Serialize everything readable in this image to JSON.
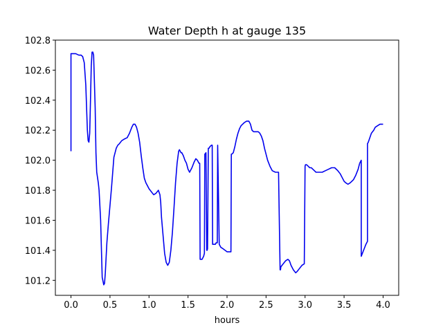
{
  "chart_data": {
    "type": "line",
    "title": "Water Depth h at gauge 135",
    "xlabel": "hours",
    "ylabel": "",
    "xlim": [
      -0.2,
      4.2
    ],
    "ylim": [
      101.1,
      102.8
    ],
    "xticks": [
      0.0,
      0.5,
      1.0,
      1.5,
      2.0,
      2.5,
      3.0,
      3.5,
      4.0
    ],
    "xtick_labels": [
      "0.0",
      "0.5",
      "1.0",
      "1.5",
      "2.0",
      "2.5",
      "3.0",
      "3.5",
      "4.0"
    ],
    "yticks": [
      101.2,
      101.4,
      101.6,
      101.8,
      102.0,
      102.2,
      102.4,
      102.6,
      102.8
    ],
    "ytick_labels": [
      "101.2",
      "101.4",
      "101.6",
      "101.8",
      "102.0",
      "102.2",
      "102.4",
      "102.6",
      "102.8"
    ],
    "grid": false,
    "series": [
      {
        "color": "#0000ee",
        "x": [
          0.0,
          0.0,
          0.03,
          0.06,
          0.1,
          0.13,
          0.15,
          0.17,
          0.19,
          0.21,
          0.22,
          0.23,
          0.24,
          0.25,
          0.26,
          0.27,
          0.28,
          0.29,
          0.31,
          0.32,
          0.33,
          0.35,
          0.36,
          0.38,
          0.4,
          0.42,
          0.43,
          0.44,
          0.45,
          0.46,
          0.48,
          0.5,
          0.52,
          0.55,
          0.58,
          0.6,
          0.62,
          0.65,
          0.68,
          0.72,
          0.75,
          0.78,
          0.8,
          0.82,
          0.84,
          0.86,
          0.88,
          0.9,
          0.92,
          0.94,
          0.96,
          0.98,
          1.0,
          1.03,
          1.06,
          1.09,
          1.12,
          1.14,
          1.15,
          1.16,
          1.18,
          1.2,
          1.22,
          1.24,
          1.26,
          1.28,
          1.3,
          1.32,
          1.34,
          1.36,
          1.38,
          1.39,
          1.41,
          1.42,
          1.44,
          1.46,
          1.48,
          1.5,
          1.52,
          1.55,
          1.58,
          1.6,
          1.62,
          1.64,
          1.65,
          1.655,
          1.66,
          1.68,
          1.7,
          1.71,
          1.715,
          1.73,
          1.74,
          1.745,
          1.75,
          1.76,
          1.77,
          1.78,
          1.8,
          1.81,
          1.815,
          1.83,
          1.85,
          1.86,
          1.87,
          1.875,
          1.88,
          1.9,
          1.92,
          1.95,
          2.0,
          2.05,
          2.055,
          2.06,
          2.08,
          2.1,
          2.12,
          2.14,
          2.16,
          2.18,
          2.2,
          2.22,
          2.25,
          2.28,
          2.3,
          2.32,
          2.34,
          2.36,
          2.4,
          2.42,
          2.44,
          2.46,
          2.48,
          2.5,
          2.52,
          2.55,
          2.58,
          2.62,
          2.66,
          2.68,
          2.685,
          2.69,
          2.72,
          2.75,
          2.78,
          2.8,
          2.82,
          2.85,
          2.88,
          2.9,
          2.93,
          2.96,
          2.99,
          3.0,
          3.005,
          3.02,
          3.04,
          3.06,
          3.08,
          3.1,
          3.12,
          3.14,
          3.18,
          3.22,
          3.26,
          3.3,
          3.34,
          3.38,
          3.42,
          3.45,
          3.48,
          3.5,
          3.52,
          3.55,
          3.58,
          3.62,
          3.65,
          3.68,
          3.7,
          3.71,
          3.72,
          3.72,
          3.75,
          3.78,
          3.8,
          3.8,
          3.81,
          3.83,
          3.85,
          3.88,
          3.9,
          3.93,
          3.96,
          3.98,
          4.0
        ],
        "values": [
          102.06,
          102.71,
          102.71,
          102.71,
          102.7,
          102.7,
          102.69,
          102.65,
          102.5,
          102.2,
          102.13,
          102.12,
          102.18,
          102.4,
          102.63,
          102.72,
          102.72,
          102.7,
          102.35,
          102.05,
          101.92,
          101.85,
          101.8,
          101.6,
          101.22,
          101.17,
          101.18,
          101.25,
          101.35,
          101.45,
          101.58,
          101.7,
          101.82,
          102.02,
          102.08,
          102.1,
          102.11,
          102.13,
          102.14,
          102.15,
          102.18,
          102.22,
          102.24,
          102.24,
          102.22,
          102.18,
          102.12,
          102.03,
          101.95,
          101.88,
          101.85,
          101.83,
          101.81,
          101.79,
          101.77,
          101.78,
          101.8,
          101.77,
          101.72,
          101.62,
          101.5,
          101.38,
          101.32,
          101.3,
          101.32,
          101.4,
          101.52,
          101.68,
          101.85,
          101.98,
          102.06,
          102.07,
          102.05,
          102.05,
          102.03,
          102.0,
          101.98,
          101.94,
          101.92,
          101.95,
          101.99,
          102.01,
          102.0,
          101.98,
          101.98,
          101.34,
          101.34,
          101.34,
          101.36,
          101.38,
          102.04,
          102.05,
          101.4,
          101.4,
          101.41,
          102.08,
          102.08,
          102.09,
          102.1,
          102.1,
          101.44,
          101.44,
          101.44,
          101.45,
          101.45,
          101.45,
          102.1,
          101.44,
          101.42,
          101.41,
          101.39,
          101.39,
          102.04,
          102.04,
          102.05,
          102.09,
          102.14,
          102.18,
          102.21,
          102.23,
          102.24,
          102.25,
          102.26,
          102.26,
          102.24,
          102.2,
          102.19,
          102.19,
          102.19,
          102.18,
          102.16,
          102.13,
          102.08,
          102.04,
          102.0,
          101.96,
          101.93,
          101.92,
          101.92,
          101.27,
          101.27,
          101.29,
          101.31,
          101.33,
          101.34,
          101.33,
          101.3,
          101.27,
          101.25,
          101.26,
          101.28,
          101.3,
          101.31,
          101.96,
          101.97,
          101.97,
          101.96,
          101.95,
          101.95,
          101.94,
          101.93,
          101.92,
          101.92,
          101.92,
          101.93,
          101.94,
          101.95,
          101.95,
          101.93,
          101.91,
          101.88,
          101.86,
          101.85,
          101.84,
          101.85,
          101.87,
          101.9,
          101.94,
          101.98,
          101.99,
          102.0,
          101.36,
          101.4,
          101.44,
          101.46,
          102.11,
          102.12,
          102.15,
          102.18,
          102.2,
          102.22,
          102.23,
          102.24,
          102.24,
          102.24
        ]
      }
    ]
  }
}
